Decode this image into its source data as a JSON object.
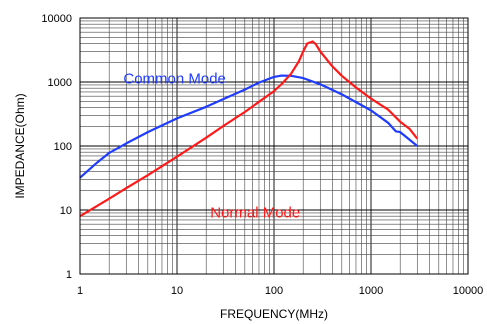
{
  "chart_data": {
    "type": "line",
    "xlabel": "FREQUENCY(MHz)",
    "ylabel": "IMPEDANCE(Ohm)",
    "x_scale": "log",
    "y_scale": "log",
    "xlim": [
      1,
      10000
    ],
    "ylim": [
      1,
      10000
    ],
    "grid": true,
    "x_ticks": [
      "1",
      "10",
      "100",
      "1000",
      "10000"
    ],
    "y_ticks": [
      "1",
      "10",
      "100",
      "1000",
      "10000"
    ],
    "series": [
      {
        "name": "Common Mode",
        "color": "#1f3cff",
        "x": [
          1,
          1.5,
          2,
          3,
          5,
          10,
          20,
          30,
          50,
          70,
          100,
          120,
          150,
          200,
          300,
          500,
          1000,
          1500,
          1800,
          2000,
          3000
        ],
        "y": [
          32,
          55,
          78,
          110,
          165,
          270,
          410,
          540,
          760,
          980,
          1200,
          1260,
          1250,
          1150,
          920,
          640,
          360,
          230,
          170,
          165,
          100
        ]
      },
      {
        "name": "Normal Mode",
        "color": "#ff1a1a",
        "x": [
          1,
          2,
          3,
          5,
          10,
          20,
          30,
          50,
          70,
          100,
          120,
          150,
          180,
          200,
          220,
          250,
          270,
          300,
          400,
          500,
          700,
          1000,
          1500,
          2000,
          2500,
          3000
        ],
        "y": [
          8,
          15,
          22,
          35,
          68,
          135,
          205,
          340,
          490,
          720,
          930,
          1350,
          2100,
          3000,
          4000,
          4300,
          3900,
          3000,
          1750,
          1250,
          820,
          550,
          370,
          240,
          185,
          130
        ]
      }
    ],
    "annotations": [
      "Common Mode",
      "Normal Mode"
    ]
  }
}
